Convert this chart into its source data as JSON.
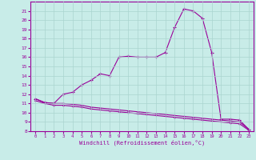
{
  "title": "",
  "xlabel": "Windchill (Refroidissement éolien,°C)",
  "ylabel": "",
  "bg_color": "#c8ece8",
  "line_color": "#990099",
  "grid_color": "#b8ddd8",
  "xlim": [
    -0.5,
    23.5
  ],
  "ylim": [
    8,
    22
  ],
  "yticks": [
    8,
    9,
    10,
    11,
    12,
    13,
    14,
    15,
    16,
    17,
    18,
    19,
    20,
    21
  ],
  "xticks": [
    0,
    1,
    2,
    3,
    4,
    5,
    6,
    7,
    8,
    9,
    10,
    11,
    12,
    13,
    14,
    15,
    16,
    17,
    18,
    19,
    20,
    21,
    22,
    23
  ],
  "curve1_x": [
    0,
    1,
    2,
    3,
    4,
    5,
    6,
    7,
    8,
    9,
    10,
    11,
    12,
    13,
    14,
    15,
    16,
    17,
    18,
    19,
    20,
    21,
    22,
    23
  ],
  "curve1_y": [
    11.5,
    11.1,
    11.0,
    12.0,
    12.2,
    13.0,
    13.5,
    14.2,
    14.0,
    16.0,
    16.1,
    16.0,
    16.0,
    16.0,
    16.5,
    19.2,
    21.2,
    21.0,
    20.2,
    16.5,
    9.3,
    9.3,
    9.2,
    8.2
  ],
  "curve2_x": [
    0,
    1,
    2,
    3,
    4,
    5,
    6,
    7,
    8,
    9,
    10,
    11,
    12,
    13,
    14,
    15,
    16,
    17,
    18,
    19,
    20,
    21,
    22,
    23
  ],
  "curve2_y": [
    11.5,
    11.1,
    11.0,
    11.0,
    10.9,
    10.8,
    10.6,
    10.5,
    10.4,
    10.3,
    10.2,
    10.1,
    10.0,
    9.9,
    9.8,
    9.7,
    9.6,
    9.5,
    9.4,
    9.3,
    9.2,
    9.1,
    9.0,
    8.2
  ],
  "curve3_x": [
    0,
    1,
    2,
    3,
    4,
    5,
    6,
    7,
    8,
    9,
    10,
    11,
    12,
    13,
    14,
    15,
    16,
    17,
    18,
    19,
    20,
    21,
    22,
    23
  ],
  "curve3_y": [
    11.3,
    11.0,
    10.8,
    10.8,
    10.7,
    10.6,
    10.4,
    10.3,
    10.2,
    10.1,
    10.0,
    9.9,
    9.8,
    9.7,
    9.6,
    9.5,
    9.4,
    9.3,
    9.2,
    9.1,
    9.0,
    8.9,
    8.8,
    8.1
  ]
}
